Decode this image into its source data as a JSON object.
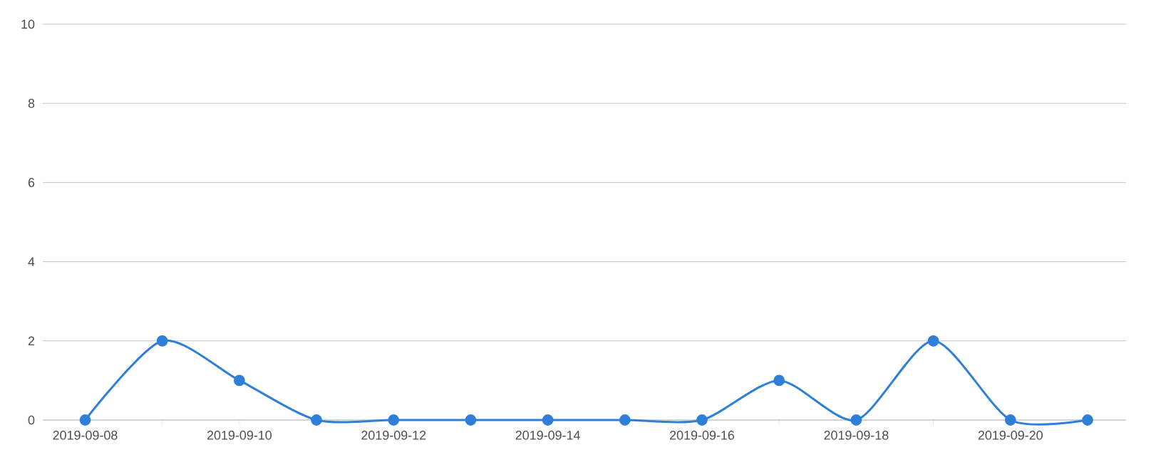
{
  "chart_data": {
    "type": "line",
    "categories": [
      "2019-09-08",
      null,
      "2019-09-10",
      null,
      "2019-09-12",
      null,
      "2019-09-14",
      null,
      "2019-09-16",
      null,
      "2019-09-18",
      null,
      "2019-09-20",
      null
    ],
    "series": [
      {
        "color": "#2f7ed8",
        "values": [
          0,
          2,
          1,
          0,
          0,
          0,
          0,
          0,
          0,
          1,
          0,
          2,
          0,
          0
        ]
      }
    ],
    "ylim": [
      0,
      10
    ],
    "yticks": [
      0,
      2,
      4,
      6,
      8,
      10
    ],
    "grid": "y",
    "marker": "circle",
    "line_style": "solid"
  }
}
